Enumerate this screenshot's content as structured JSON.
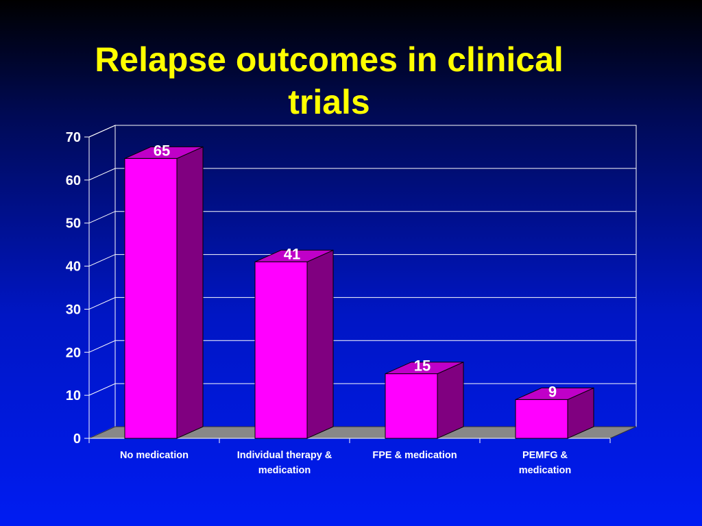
{
  "slide": {
    "title_line1": "Relapse outcomes in clinical",
    "title_line2": "trials"
  },
  "colors": {
    "bar_front": "#ff00ff",
    "bar_top": "#c000c8",
    "bar_side": "#800080",
    "floor": "#888888",
    "grid": "#ffffff",
    "title": "#ffff00",
    "text": "#ffffff"
  },
  "chart_data": {
    "type": "bar",
    "title": "Relapse outcomes in clinical trials",
    "categories": [
      "No medication",
      "Individual therapy & medication",
      "FPE & medication",
      "PEMFG & medication"
    ],
    "category_lines": [
      [
        "No medication"
      ],
      [
        "Individual therapy &",
        "medication"
      ],
      [
        "FPE & medication"
      ],
      [
        "PEMFG &",
        "medication"
      ]
    ],
    "values": [
      65,
      41,
      15,
      9
    ],
    "data_labels": [
      "65",
      "41",
      "15",
      "9"
    ],
    "ylim": [
      0,
      70
    ],
    "yticks": [
      0,
      10,
      20,
      30,
      40,
      50,
      60,
      70
    ],
    "xlabel": "",
    "ylabel": "",
    "grid": true,
    "legend": "none",
    "three_d": true
  }
}
